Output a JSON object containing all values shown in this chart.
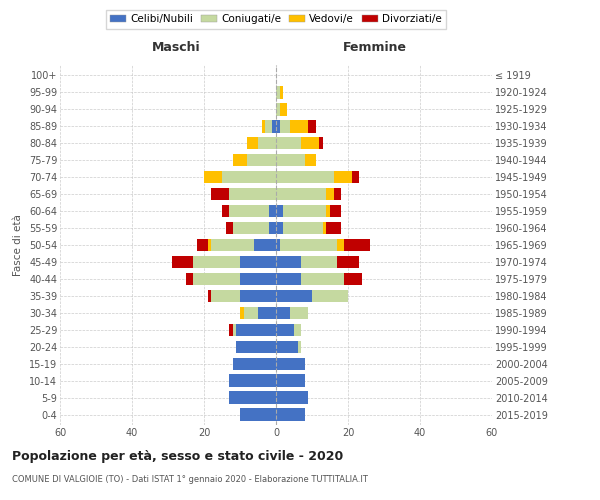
{
  "age_groups": [
    "0-4",
    "5-9",
    "10-14",
    "15-19",
    "20-24",
    "25-29",
    "30-34",
    "35-39",
    "40-44",
    "45-49",
    "50-54",
    "55-59",
    "60-64",
    "65-69",
    "70-74",
    "75-79",
    "80-84",
    "85-89",
    "90-94",
    "95-99",
    "100+"
  ],
  "birth_years": [
    "2015-2019",
    "2010-2014",
    "2005-2009",
    "2000-2004",
    "1995-1999",
    "1990-1994",
    "1985-1989",
    "1980-1984",
    "1975-1979",
    "1970-1974",
    "1965-1969",
    "1960-1964",
    "1955-1959",
    "1950-1954",
    "1945-1949",
    "1940-1944",
    "1935-1939",
    "1930-1934",
    "1925-1929",
    "1920-1924",
    "≤ 1919"
  ],
  "male": {
    "celibi": [
      10,
      13,
      13,
      12,
      11,
      11,
      5,
      10,
      10,
      10,
      6,
      2,
      2,
      0,
      0,
      0,
      0,
      1,
      0,
      0,
      0
    ],
    "coniugati": [
      0,
      0,
      0,
      0,
      0,
      1,
      4,
      8,
      13,
      13,
      12,
      10,
      11,
      13,
      15,
      8,
      5,
      2,
      0,
      0,
      0
    ],
    "vedovi": [
      0,
      0,
      0,
      0,
      0,
      0,
      1,
      0,
      0,
      0,
      1,
      0,
      0,
      0,
      5,
      4,
      3,
      1,
      0,
      0,
      0
    ],
    "divorziati": [
      0,
      0,
      0,
      0,
      0,
      1,
      0,
      1,
      2,
      6,
      3,
      2,
      2,
      5,
      0,
      0,
      0,
      0,
      0,
      0,
      0
    ]
  },
  "female": {
    "nubili": [
      8,
      9,
      8,
      8,
      6,
      5,
      4,
      10,
      7,
      7,
      1,
      2,
      2,
      0,
      0,
      0,
      0,
      1,
      0,
      0,
      0
    ],
    "coniugate": [
      0,
      0,
      0,
      0,
      1,
      2,
      5,
      10,
      12,
      10,
      16,
      11,
      12,
      14,
      16,
      8,
      7,
      3,
      1,
      1,
      0
    ],
    "vedove": [
      0,
      0,
      0,
      0,
      0,
      0,
      0,
      0,
      0,
      0,
      2,
      1,
      1,
      2,
      5,
      3,
      5,
      5,
      2,
      1,
      0
    ],
    "divorziate": [
      0,
      0,
      0,
      0,
      0,
      0,
      0,
      0,
      5,
      6,
      7,
      4,
      3,
      2,
      2,
      0,
      1,
      2,
      0,
      0,
      0
    ]
  },
  "colors": {
    "celibi": "#4472c4",
    "coniugati": "#c5d9a0",
    "vedovi": "#ffc000",
    "divorziati": "#c00000"
  },
  "xlim": 60,
  "title": "Popolazione per età, sesso e stato civile - 2020",
  "subtitle": "COMUNE DI VALGIOIE (TO) - Dati ISTAT 1° gennaio 2020 - Elaborazione TUTTITALIA.IT",
  "ylabel_left": "Fasce di età",
  "xlabel_left": "Maschi",
  "xlabel_right": "Femmine",
  "legend_labels": [
    "Celibi/Nubili",
    "Coniugati/e",
    "Vedovi/e",
    "Divorziati/e"
  ],
  "background_color": "#ffffff",
  "grid_color": "#cccccc"
}
